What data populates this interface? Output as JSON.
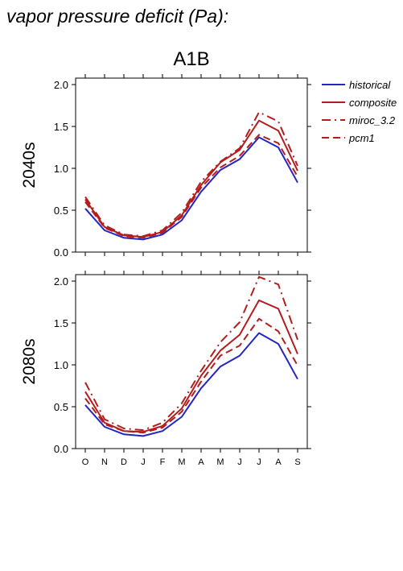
{
  "page_title": "vapor pressure deficit (Pa):",
  "colors": {
    "historical": "#2326c0",
    "future": "#b31d1d"
  },
  "legend": [
    {
      "key": "historical",
      "label": "historical",
      "style": "solid",
      "color": "#2326c0"
    },
    {
      "key": "composite",
      "label": "composite",
      "style": "solid",
      "color": "#b31d1d"
    },
    {
      "key": "miroc",
      "label": "miroc_3.2",
      "style": "dashdot",
      "color": "#b31d1d"
    },
    {
      "key": "pcm1",
      "label": "pcm1",
      "style": "dashed",
      "color": "#b31d1d"
    }
  ],
  "chart_data": [
    {
      "type": "line",
      "title": "A1B",
      "ylabel": "2040s",
      "ylim": [
        0,
        2.0
      ],
      "yticks": [
        "0.0",
        "0.5",
        "1.0",
        "1.5",
        "2.0"
      ],
      "x": [
        "O",
        "N",
        "D",
        "J",
        "F",
        "M",
        "A",
        "M",
        "J",
        "J",
        "A",
        "S"
      ],
      "show_xlabels": false,
      "series": [
        {
          "name": "historical",
          "values": [
            0.52,
            0.26,
            0.17,
            0.15,
            0.21,
            0.38,
            0.72,
            0.98,
            1.11,
            1.37,
            1.25,
            0.83
          ]
        },
        {
          "name": "composite",
          "values": [
            0.63,
            0.3,
            0.2,
            0.18,
            0.24,
            0.44,
            0.8,
            1.07,
            1.22,
            1.57,
            1.45,
            0.97
          ]
        },
        {
          "name": "miroc_3.2",
          "values": [
            0.66,
            0.32,
            0.21,
            0.19,
            0.26,
            0.47,
            0.84,
            1.08,
            1.24,
            1.67,
            1.56,
            1.03
          ]
        },
        {
          "name": "pcm1",
          "values": [
            0.6,
            0.29,
            0.19,
            0.17,
            0.23,
            0.42,
            0.77,
            1.01,
            1.15,
            1.4,
            1.3,
            0.9
          ]
        }
      ]
    },
    {
      "type": "line",
      "title": "",
      "ylabel": "2080s",
      "ylim": [
        0,
        2.0
      ],
      "yticks": [
        "0.0",
        "0.5",
        "1.0",
        "1.5",
        "2.0"
      ],
      "x": [
        "O",
        "N",
        "D",
        "J",
        "F",
        "M",
        "A",
        "M",
        "J",
        "J",
        "A",
        "S"
      ],
      "show_xlabels": true,
      "series": [
        {
          "name": "historical",
          "values": [
            0.52,
            0.26,
            0.17,
            0.15,
            0.21,
            0.38,
            0.72,
            0.98,
            1.11,
            1.38,
            1.25,
            0.83
          ]
        },
        {
          "name": "composite",
          "values": [
            0.68,
            0.31,
            0.21,
            0.2,
            0.27,
            0.48,
            0.87,
            1.17,
            1.36,
            1.77,
            1.67,
            1.13
          ]
        },
        {
          "name": "miroc_3.2",
          "values": [
            0.79,
            0.35,
            0.24,
            0.22,
            0.31,
            0.54,
            0.93,
            1.27,
            1.51,
            2.05,
            1.96,
            1.3
          ]
        },
        {
          "name": "pcm1",
          "values": [
            0.6,
            0.29,
            0.21,
            0.19,
            0.25,
            0.44,
            0.8,
            1.11,
            1.23,
            1.55,
            1.4,
            0.99
          ]
        }
      ]
    }
  ]
}
